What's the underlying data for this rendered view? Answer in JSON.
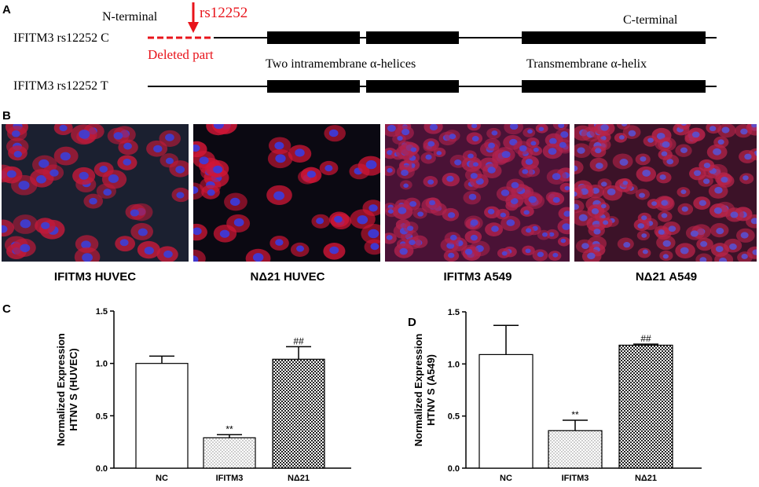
{
  "panels": {
    "A": {
      "letter": "A",
      "n_terminal": "N-terminal",
      "snp_label": "rs12252",
      "c_terminal": "C-terminal",
      "row1_label": "IFITM3 rs12252 C",
      "row2_label": "IFITM3 rs12252 T",
      "deleted_part": "Deleted part",
      "intramembrane": "Two intramembrane α-helices",
      "transmembrane": "Transmembrane α-helix",
      "colors": {
        "deleted": "#e8141b",
        "domain": "#000000"
      }
    },
    "B": {
      "letter": "B",
      "images": [
        {
          "caption": "IFITM3 HUVEC",
          "bg": "#1b2030",
          "cell": "#c01a3a",
          "nucleus": "#3b3fd8"
        },
        {
          "caption": "NΔ21 HUVEC",
          "bg": "#0b0912",
          "cell": "#d01636",
          "nucleus": "#3a3ce0"
        },
        {
          "caption": "IFITM3 A549",
          "bg": "#4a1236",
          "cell": "#b0224e",
          "nucleus": "#4a46d8"
        },
        {
          "caption": "NΔ21 A549",
          "bg": "#3c1228",
          "cell": "#b8244a",
          "nucleus": "#5a50d0"
        }
      ]
    }
  },
  "chart_data": [
    {
      "panel": "C",
      "type": "bar",
      "categories": [
        "NC",
        "IFITM3",
        "NΔ21"
      ],
      "values": [
        1.0,
        0.29,
        1.04
      ],
      "errors": [
        0.07,
        0.03,
        0.12
      ],
      "significance": [
        "",
        "**",
        "##"
      ],
      "patterns": [
        "empty",
        "dots",
        "checker"
      ],
      "ylabel": [
        "Normalized Expression",
        "HTNV S (HUVEC)"
      ],
      "ylim": [
        0,
        1.5
      ],
      "yticks": [
        "0.0",
        "0.5",
        "1.0",
        "1.5"
      ],
      "ytick_values": [
        0,
        0.5,
        1.0,
        1.5
      ]
    },
    {
      "panel": "D",
      "type": "bar",
      "categories": [
        "NC",
        "IFITM3",
        "NΔ21"
      ],
      "values": [
        1.09,
        0.36,
        1.18
      ],
      "errors": [
        0.28,
        0.1,
        0.01
      ],
      "significance": [
        "",
        "**",
        "##"
      ],
      "patterns": [
        "empty",
        "dots",
        "checker"
      ],
      "ylabel": [
        "Normalized Expression",
        "HTNV S (A549)"
      ],
      "ylim": [
        0,
        1.5
      ],
      "yticks": [
        "0.0",
        "0.5",
        "1.0",
        "1.5"
      ],
      "ytick_values": [
        0,
        0.5,
        1.0,
        1.5
      ]
    }
  ]
}
